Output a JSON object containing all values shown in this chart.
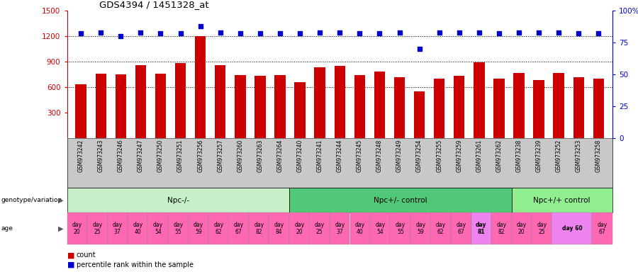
{
  "title": "GDS4394 / 1451328_at",
  "samples": [
    "GSM973242",
    "GSM973243",
    "GSM973246",
    "GSM973247",
    "GSM973250",
    "GSM973251",
    "GSM973256",
    "GSM973257",
    "GSM973260",
    "GSM973263",
    "GSM973264",
    "GSM973240",
    "GSM973241",
    "GSM973244",
    "GSM973245",
    "GSM973248",
    "GSM973249",
    "GSM973254",
    "GSM973255",
    "GSM973259",
    "GSM973261",
    "GSM973262",
    "GSM973238",
    "GSM973239",
    "GSM973252",
    "GSM973253",
    "GSM973258"
  ],
  "counts": [
    630,
    760,
    750,
    860,
    760,
    880,
    1200,
    860,
    740,
    730,
    740,
    660,
    830,
    850,
    740,
    780,
    720,
    550,
    700,
    730,
    890,
    700,
    770,
    680,
    770,
    720,
    700
  ],
  "percentiles": [
    82,
    83,
    80,
    83,
    82,
    82,
    88,
    83,
    82,
    82,
    82,
    82,
    83,
    83,
    82,
    82,
    83,
    70,
    83,
    83,
    83,
    82,
    83,
    83,
    83,
    82,
    82
  ],
  "groups": [
    {
      "label": "Npc-/-",
      "start": 0,
      "end": 11,
      "color": "#C8F0C8"
    },
    {
      "label": "Npc+/- control",
      "start": 11,
      "end": 22,
      "color": "#50C878"
    },
    {
      "label": "Npc+/+ control",
      "start": 22,
      "end": 27,
      "color": "#90EE90"
    }
  ],
  "age_cells": [
    [
      0,
      0,
      "day\n20",
      true
    ],
    [
      1,
      1,
      "day\n25",
      true
    ],
    [
      2,
      2,
      "day\n37",
      true
    ],
    [
      3,
      3,
      "day\n40",
      true
    ],
    [
      4,
      4,
      "day\n54",
      true
    ],
    [
      5,
      5,
      "day\n55",
      true
    ],
    [
      6,
      6,
      "day\n59",
      true
    ],
    [
      7,
      7,
      "day\n62",
      true
    ],
    [
      8,
      8,
      "day\n67",
      true
    ],
    [
      9,
      9,
      "day\n82",
      true
    ],
    [
      10,
      10,
      "day\n84",
      true
    ],
    [
      11,
      11,
      "day\n20",
      true
    ],
    [
      12,
      12,
      "day\n25",
      true
    ],
    [
      13,
      13,
      "day\n37",
      true
    ],
    [
      14,
      14,
      "day\n40",
      true
    ],
    [
      15,
      15,
      "day\n54",
      true
    ],
    [
      16,
      16,
      "day\n55",
      true
    ],
    [
      17,
      17,
      "day\n59",
      true
    ],
    [
      18,
      18,
      "day\n62",
      true
    ],
    [
      19,
      19,
      "day\n67",
      true
    ],
    [
      20,
      20,
      "day\n81",
      false
    ],
    [
      21,
      21,
      "day\n82",
      true
    ],
    [
      22,
      22,
      "day\n20",
      true
    ],
    [
      23,
      23,
      "day\n25",
      true
    ],
    [
      24,
      25,
      "day 60",
      false
    ],
    [
      26,
      26,
      "day\n67",
      true
    ]
  ],
  "bar_color": "#CC0000",
  "dot_color": "#0000CC",
  "ylim_left": [
    0,
    1500
  ],
  "ylim_right": [
    0,
    100
  ],
  "yticks_left": [
    300,
    600,
    900,
    1200,
    1500
  ],
  "yticks_right": [
    0,
    25,
    50,
    75,
    100
  ],
  "grid_values": [
    600,
    900,
    1200
  ],
  "age_default_color": "#FF69B4",
  "age_highlight_color": "#EE82EE",
  "xtick_bg": "#C8C8C8"
}
